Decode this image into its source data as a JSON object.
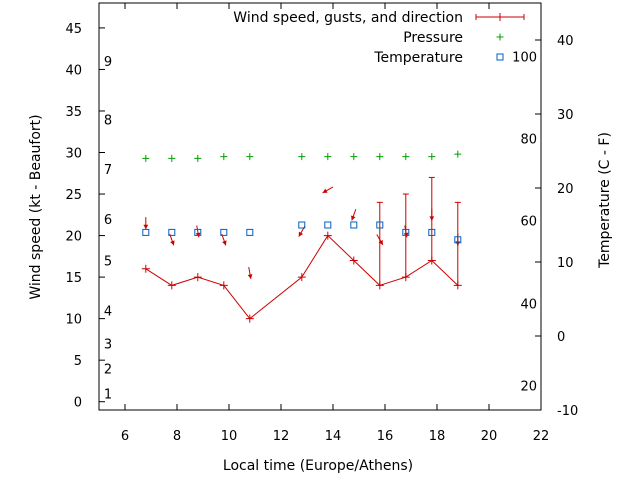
{
  "chart_data": {
    "type": "line",
    "xlabel": "Local time (Europe/Athens)",
    "ylabel": "Wind speed (kt - Beaufort)",
    "y2label": "Temperature (C - F)",
    "xlim": [
      5,
      22
    ],
    "ylim": [
      -1,
      48
    ],
    "y2lim": [
      -10,
      45
    ],
    "x_ticks": [
      6,
      8,
      10,
      12,
      14,
      16,
      18,
      20,
      22
    ],
    "y_ticks": [
      0,
      5,
      10,
      15,
      20,
      25,
      30,
      35,
      40,
      45
    ],
    "y2_ticks": [
      -10,
      0,
      10,
      20,
      30,
      40
    ],
    "beaufort_ticks": [
      {
        "label": "1",
        "kt": 1
      },
      {
        "label": "2",
        "kt": 4
      },
      {
        "label": "3",
        "kt": 7
      },
      {
        "label": "4",
        "kt": 11
      },
      {
        "label": "5",
        "kt": 17
      },
      {
        "label": "6",
        "kt": 22
      },
      {
        "label": "7",
        "kt": 28
      },
      {
        "label": "8",
        "kt": 34
      },
      {
        "label": "9",
        "kt": 41
      }
    ],
    "fahrenheit_ticks": [
      {
        "label": "20",
        "c": -6.7
      },
      {
        "label": "40",
        "c": 4.4
      },
      {
        "label": "60",
        "c": 15.6
      },
      {
        "label": "80",
        "c": 26.7
      },
      {
        "label": "100",
        "c": 37.8
      }
    ],
    "legend": [
      {
        "label": "Wind speed, gusts, and direction",
        "color": "#cc0000",
        "marker": "errorbar"
      },
      {
        "label": "Pressure",
        "color": "#00a000",
        "marker": "plus"
      },
      {
        "label": "Temperature",
        "color": "#0060c0",
        "marker": "square"
      }
    ],
    "series": [
      {
        "name": "Wind speed, gusts, and direction",
        "color": "#cc0000",
        "x": [
          6.8,
          7.8,
          8.8,
          9.8,
          10.8,
          12.8,
          13.8,
          14.8,
          15.8,
          16.8,
          17.8,
          18.8
        ],
        "values": [
          16,
          14,
          15,
          14,
          10,
          15,
          20,
          17,
          14,
          15,
          17,
          14
        ],
        "gusts": [
          null,
          null,
          null,
          null,
          null,
          null,
          null,
          null,
          24,
          25,
          27,
          24
        ],
        "direction_deg": [
          0,
          20,
          10,
          20,
          10,
          330,
          300,
          340,
          30,
          10,
          0,
          0
        ]
      },
      {
        "name": "Pressure",
        "color": "#00a000",
        "x": [
          6.8,
          7.8,
          8.8,
          9.8,
          10.8,
          12.8,
          13.8,
          14.8,
          15.8,
          16.8,
          17.8,
          18.8
        ],
        "values": [
          29.3,
          29.3,
          29.3,
          29.5,
          29.5,
          29.5,
          29.5,
          29.5,
          29.5,
          29.5,
          29.5,
          29.8
        ]
      },
      {
        "name": "Temperature",
        "color": "#0060c0",
        "x": [
          6.8,
          7.8,
          8.8,
          9.8,
          10.8,
          12.8,
          13.8,
          14.8,
          15.8,
          16.8,
          17.8,
          18.8
        ],
        "values": [
          14,
          14,
          14,
          14,
          14,
          15,
          15,
          15,
          15,
          14,
          14,
          13
        ]
      }
    ]
  }
}
